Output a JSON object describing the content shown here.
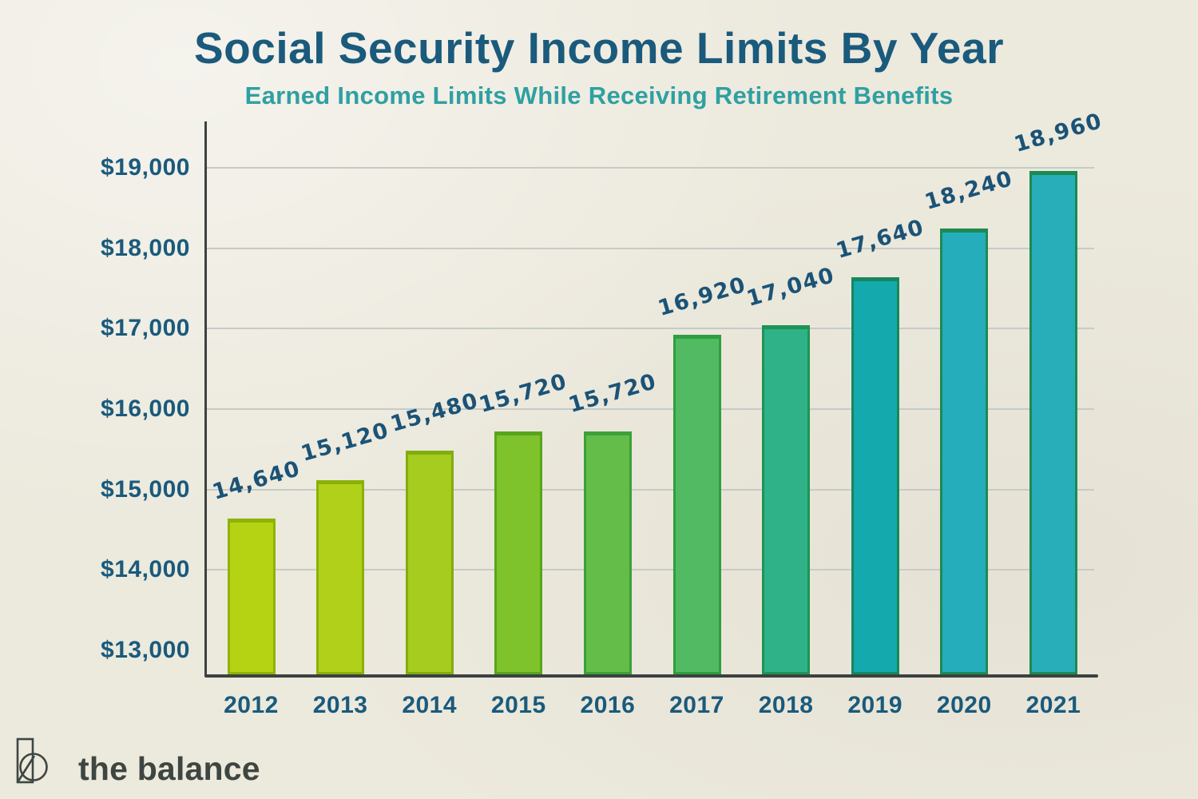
{
  "header": {
    "title": "Social Security Income Limits By Year",
    "subtitle": "Earned Income Limits While Receiving Retirement Benefits"
  },
  "chart_data": {
    "type": "bar",
    "title": "Social Security Income Limits By Year",
    "subtitle": "Earned Income Limits While Receiving Retirement Benefits",
    "categories": [
      "2012",
      "2013",
      "2014",
      "2015",
      "2016",
      "2017",
      "2018",
      "2019",
      "2020",
      "2021"
    ],
    "values": [
      14640,
      15120,
      15480,
      15720,
      15720,
      16920,
      17040,
      17640,
      18240,
      18960
    ],
    "bar_labels": [
      "14,640",
      "15,120",
      "15,480",
      "15,720",
      "15,720",
      "16,920",
      "17,040",
      "17,640",
      "18,240",
      "18,960"
    ],
    "xlabel": "",
    "ylabel": "",
    "ylim": [
      12700,
      19600
    ],
    "y_ticks": [
      "$19,000",
      "$18,000",
      "$17,000",
      "$16,000",
      "$15,000",
      "$14,000",
      "$13,000"
    ],
    "y_tick_values": [
      19000,
      18000,
      17000,
      16000,
      15000,
      14000,
      13000
    ],
    "grid": "horizontal gridlines at $14,000 through $19,000 only; no gridline at $13,000",
    "legend": "none",
    "bar_colors": [
      "#b6d313",
      "#b1d01a",
      "#a6cc20",
      "#7ec32b",
      "#63bd48",
      "#53ba64",
      "#2fb288",
      "#14a9ad",
      "#26adbb",
      "#28aeb9"
    ],
    "bar_edge_colors": [
      "#8eb307",
      "#8ab10a",
      "#82ad0e",
      "#57a51e",
      "#3ba138",
      "#2f9e3f",
      "#1f9356",
      "#17875d",
      "#1c8a52",
      "#1c8a52"
    ]
  },
  "colors": {
    "background": "#ece9dd",
    "title_text": "#1a5a7c",
    "subtitle_text": "#2fa0a2",
    "axis_tick_text": "#1a5a7c",
    "value_label_text": "#1b5377",
    "gridline": "#c6cbc6",
    "axis_line": "#3c4140",
    "logo_text": "#3e4641"
  },
  "brand": {
    "logo_text": "the balance"
  }
}
